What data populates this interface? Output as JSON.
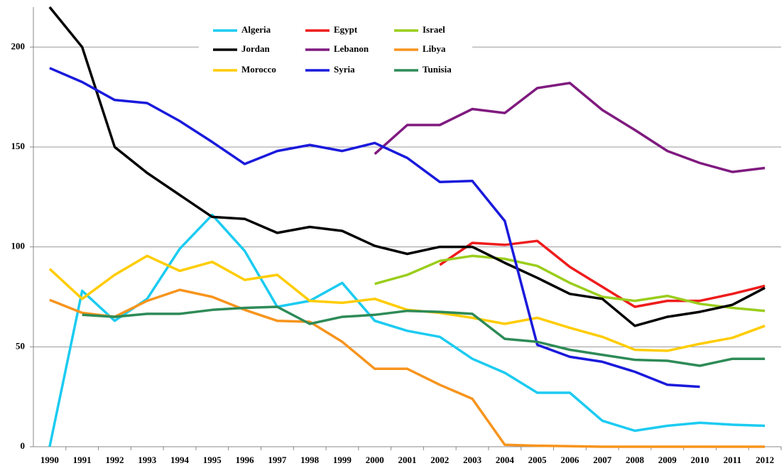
{
  "chart_data": {
    "type": "line",
    "categories": [
      "1990",
      "1991",
      "1992",
      "1993",
      "1994",
      "1995",
      "1996",
      "1997",
      "1998",
      "1999",
      "2000",
      "2001",
      "2002",
      "2003",
      "2004",
      "2005",
      "2006",
      "2007",
      "2008",
      "2009",
      "2010",
      "2011",
      "2012"
    ],
    "series": [
      {
        "name": "Algeria",
        "color": "#1ccbf1",
        "values": [
          0,
          78,
          63,
          74,
          99,
          116,
          98,
          70,
          73,
          82,
          63,
          58,
          55,
          44,
          37,
          27,
          27,
          13,
          8,
          10.5,
          12,
          11,
          10.5
        ]
      },
      {
        "name": "Egypt",
        "color": "#ee1c1c",
        "values": [
          null,
          null,
          null,
          null,
          null,
          null,
          null,
          null,
          null,
          null,
          null,
          null,
          91,
          102,
          101,
          103,
          90,
          80,
          70,
          73,
          73,
          76.5,
          80.5
        ]
      },
      {
        "name": "Israel",
        "color": "#9acd1c",
        "values": [
          null,
          null,
          null,
          null,
          null,
          null,
          null,
          null,
          null,
          null,
          81.5,
          86,
          93,
          95.5,
          94,
          90.5,
          82,
          75,
          73,
          75.5,
          71.5,
          69.5,
          68
        ]
      },
      {
        "name": "Jordan",
        "color": "#000000",
        "values": [
          220,
          200,
          150,
          137,
          126,
          115,
          114,
          107,
          110,
          108,
          100.5,
          96.5,
          100,
          100,
          92,
          84.5,
          76.5,
          74,
          60.5,
          65,
          67.5,
          71,
          79.5
        ]
      },
      {
        "name": "Lebanon",
        "color": "#7f1a7f",
        "values": [
          null,
          null,
          null,
          null,
          null,
          null,
          null,
          null,
          null,
          null,
          146.5,
          161,
          161,
          169,
          167,
          179.5,
          182,
          168.5,
          158.5,
          148,
          142,
          137.5,
          139.5
        ]
      },
      {
        "name": "Libya",
        "color": "#f7941d",
        "values": [
          73.5,
          67,
          65,
          73,
          78.5,
          75,
          68.5,
          63,
          62.5,
          52.5,
          39,
          39,
          31,
          24,
          1,
          0.5,
          0.3,
          0,
          0,
          0,
          0,
          0,
          0
        ]
      },
      {
        "name": "Morocco",
        "color": "#ffcc00",
        "values": [
          89,
          74,
          86,
          95.5,
          88,
          92.5,
          83.5,
          86,
          73,
          72,
          74,
          68.5,
          67,
          64.5,
          61.5,
          64.5,
          59.5,
          55,
          48.5,
          48,
          51.5,
          54.5,
          60.5
        ]
      },
      {
        "name": "Syria",
        "color": "#1a1adc",
        "values": [
          189.5,
          182.5,
          173.5,
          172,
          163,
          152.5,
          141.5,
          148,
          151,
          148,
          152,
          144.5,
          132.5,
          133,
          113,
          51,
          45,
          42.5,
          37.5,
          31,
          30,
          null,
          null
        ]
      },
      {
        "name": "Tunisia",
        "color": "#2e8b57",
        "values": [
          null,
          66,
          65,
          66.5,
          66.5,
          68.5,
          69.5,
          70,
          61.5,
          65,
          66,
          68,
          67.5,
          66.5,
          54,
          52.5,
          48.5,
          46,
          43.5,
          43,
          40.5,
          44,
          44
        ]
      }
    ],
    "ylim": [
      0,
      220
    ],
    "yticks": [
      0,
      50,
      100,
      150,
      200
    ],
    "grid": true,
    "legend": "top"
  }
}
